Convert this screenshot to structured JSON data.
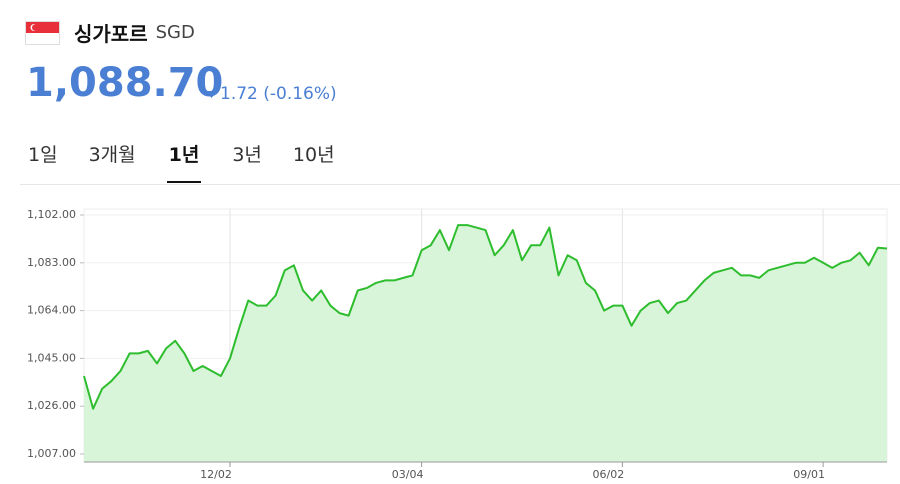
{
  "header": {
    "title": "싱가포르",
    "currency": "SGD",
    "price": "1,088.70",
    "change": "1.72 (-0.16%)"
  },
  "tabs": {
    "items": [
      "1일",
      "3개월",
      "1년",
      "3년",
      "10년"
    ],
    "active": 2
  },
  "chart_data": {
    "type": "area",
    "color": "#2ebd2e",
    "fill": "#d9f5d9",
    "categories": [
      null,
      null,
      null,
      null,
      null,
      null,
      null,
      null,
      null,
      null,
      null,
      null,
      null,
      null,
      null,
      null,
      "12/02",
      null,
      null,
      null,
      null,
      null,
      null,
      null,
      null,
      null,
      null,
      null,
      null,
      null,
      null,
      null,
      null,
      null,
      null,
      null,
      null,
      "03/04",
      null,
      null,
      null,
      null,
      null,
      null,
      null,
      null,
      null,
      null,
      null,
      null,
      null,
      null,
      null,
      null,
      null,
      null,
      null,
      null,
      null,
      "06/02",
      null,
      null,
      null,
      null,
      null,
      null,
      null,
      null,
      null,
      null,
      null,
      null,
      null,
      null,
      null,
      null,
      null,
      null,
      null,
      null,
      null,
      "09/01",
      null,
      null,
      null,
      null,
      null,
      null,
      null
    ],
    "values": [
      1038,
      1025,
      1033,
      1036,
      1040,
      1047,
      1047,
      1048,
      1043,
      1049,
      1052,
      1047,
      1040,
      1042,
      1040,
      1038,
      1045,
      1057,
      1068,
      1066,
      1066,
      1070,
      1080,
      1082,
      1072,
      1068,
      1072,
      1066,
      1063,
      1062,
      1072,
      1073,
      1075,
      1076,
      1076,
      1077,
      1078,
      1088,
      1090,
      1096,
      1088,
      1098,
      1098,
      1097,
      1096,
      1086,
      1090,
      1096,
      1084,
      1090,
      1090,
      1097,
      1078,
      1086,
      1084,
      1075,
      1072,
      1064,
      1066,
      1066,
      1058,
      1064,
      1067,
      1068,
      1063,
      1067,
      1068,
      1072,
      1076,
      1079,
      1080,
      1081,
      1078,
      1078,
      1077,
      1080,
      1081,
      1082,
      1083,
      1083,
      1085,
      1083,
      1081,
      1083,
      1084,
      1087,
      1082,
      1089,
      1088.7
    ],
    "ylim": [
      1007,
      1102
    ],
    "yticks": [
      {
        "value": 1007,
        "label": "1,007.00"
      },
      {
        "value": 1026,
        "label": "1,026.00"
      },
      {
        "value": 1045,
        "label": "1,045.00"
      },
      {
        "value": 1064,
        "label": "1,064.00"
      },
      {
        "value": 1083,
        "label": "1,083.00"
      },
      {
        "value": 1102,
        "label": "1,102.00"
      }
    ],
    "grid": true
  }
}
